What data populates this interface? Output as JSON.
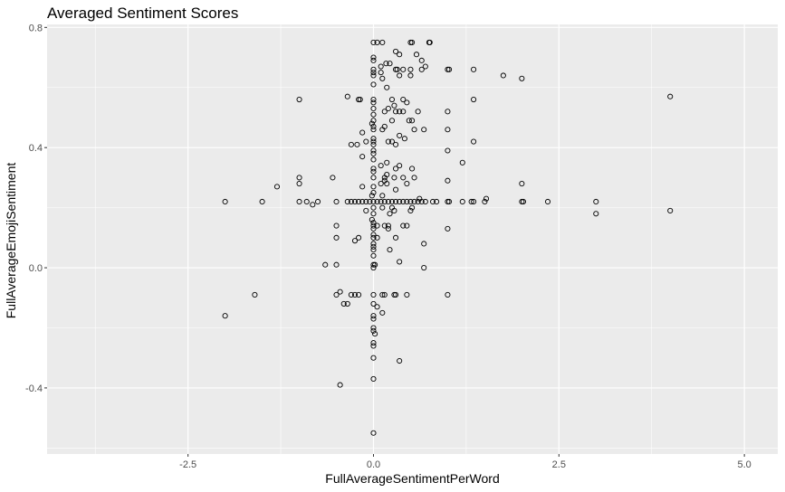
{
  "chart_data": {
    "type": "scatter",
    "title": "Averaged Sentiment Scores",
    "xlabel": "FullAverageSentimentPerWord",
    "ylabel": "FullAverageEmojiSentiment",
    "xlim": [
      -4.4,
      5.45
    ],
    "ylim": [
      -0.62,
      0.81
    ],
    "xticks": [
      -2.5,
      0.0,
      2.5,
      5.0
    ],
    "xtick_labels": [
      "-2.5",
      "0.0",
      "2.5",
      "5.0"
    ],
    "yticks": [
      -0.4,
      0.0,
      0.4,
      0.8
    ],
    "ytick_labels": [
      "-0.4",
      "0.0",
      "0.4",
      "0.8"
    ],
    "grid": true,
    "panel_background": "#ebebeb",
    "grid_color": "#ffffff",
    "point_color": "#000000",
    "marker": "open-circle",
    "points": [
      [
        0.0,
        0.75
      ],
      [
        0.05,
        0.75
      ],
      [
        0.12,
        0.75
      ],
      [
        0.5,
        0.75
      ],
      [
        0.52,
        0.75
      ],
      [
        0.75,
        0.75
      ],
      [
        0.76,
        0.75
      ],
      [
        0.3,
        0.72
      ],
      [
        0.35,
        0.71
      ],
      [
        0.58,
        0.71
      ],
      [
        0.0,
        0.7
      ],
      [
        0.0,
        0.69
      ],
      [
        0.17,
        0.68
      ],
      [
        0.1,
        0.67
      ],
      [
        0.22,
        0.68
      ],
      [
        0.65,
        0.69
      ],
      [
        0.7,
        0.67
      ],
      [
        1.0,
        0.66
      ],
      [
        1.35,
        0.66
      ],
      [
        0.0,
        0.66
      ],
      [
        0.1,
        0.65
      ],
      [
        0.3,
        0.66
      ],
      [
        0.32,
        0.66
      ],
      [
        0.4,
        0.66
      ],
      [
        0.5,
        0.66
      ],
      [
        0.65,
        0.66
      ],
      [
        1.02,
        0.66
      ],
      [
        0.0,
        0.65
      ],
      [
        0.0,
        0.64
      ],
      [
        0.12,
        0.63
      ],
      [
        0.35,
        0.64
      ],
      [
        0.5,
        0.64
      ],
      [
        1.75,
        0.64
      ],
      [
        2.0,
        0.63
      ],
      [
        0.0,
        0.61
      ],
      [
        0.18,
        0.6
      ],
      [
        -1.0,
        0.56
      ],
      [
        -0.35,
        0.57
      ],
      [
        -0.2,
        0.56
      ],
      [
        -0.18,
        0.56
      ],
      [
        0.0,
        0.56
      ],
      [
        0.0,
        0.55
      ],
      [
        0.25,
        0.56
      ],
      [
        0.4,
        0.56
      ],
      [
        0.45,
        0.55
      ],
      [
        1.35,
        0.56
      ],
      [
        4.0,
        0.57
      ],
      [
        0.0,
        0.53
      ],
      [
        0.2,
        0.53
      ],
      [
        0.28,
        0.54
      ],
      [
        0.15,
        0.52
      ],
      [
        0.3,
        0.52
      ],
      [
        0.35,
        0.52
      ],
      [
        0.4,
        0.52
      ],
      [
        0.6,
        0.52
      ],
      [
        1.0,
        0.52
      ],
      [
        0.0,
        0.51
      ],
      [
        0.0,
        0.49
      ],
      [
        0.25,
        0.49
      ],
      [
        0.48,
        0.49
      ],
      [
        0.52,
        0.49
      ],
      [
        -0.02,
        0.48
      ],
      [
        0.0,
        0.47
      ],
      [
        0.15,
        0.47
      ],
      [
        0.12,
        0.46
      ],
      [
        0.0,
        0.46
      ],
      [
        0.55,
        0.46
      ],
      [
        0.68,
        0.46
      ],
      [
        1.0,
        0.46
      ],
      [
        -0.15,
        0.45
      ],
      [
        0.35,
        0.44
      ],
      [
        0.0,
        0.43
      ],
      [
        0.42,
        0.43
      ],
      [
        -0.1,
        0.42
      ],
      [
        0.0,
        0.42
      ],
      [
        0.0,
        0.41
      ],
      [
        0.2,
        0.42
      ],
      [
        0.25,
        0.42
      ],
      [
        0.3,
        0.41
      ],
      [
        -0.3,
        0.41
      ],
      [
        -0.22,
        0.41
      ],
      [
        1.35,
        0.42
      ],
      [
        0.0,
        0.39
      ],
      [
        0.0,
        0.38
      ],
      [
        -0.15,
        0.37
      ],
      [
        1.0,
        0.39
      ],
      [
        0.0,
        0.36
      ],
      [
        0.18,
        0.35
      ],
      [
        0.1,
        0.34
      ],
      [
        0.35,
        0.34
      ],
      [
        0.0,
        0.33
      ],
      [
        0.3,
        0.33
      ],
      [
        0.52,
        0.33
      ],
      [
        1.2,
        0.35
      ],
      [
        0.0,
        0.32
      ],
      [
        0.18,
        0.31
      ],
      [
        0.28,
        0.3
      ],
      [
        -1.0,
        0.3
      ],
      [
        -0.55,
        0.3
      ],
      [
        0.0,
        0.3
      ],
      [
        0.15,
        0.3
      ],
      [
        0.4,
        0.3
      ],
      [
        0.55,
        0.3
      ],
      [
        0.15,
        0.29
      ],
      [
        1.0,
        0.29
      ],
      [
        -1.0,
        0.28
      ],
      [
        0.1,
        0.28
      ],
      [
        0.18,
        0.28
      ],
      [
        0.45,
        0.28
      ],
      [
        2.0,
        0.28
      ],
      [
        -1.3,
        0.27
      ],
      [
        -0.15,
        0.27
      ],
      [
        0.0,
        0.27
      ],
      [
        0.3,
        0.26
      ],
      [
        0.0,
        0.25
      ],
      [
        -0.02,
        0.24
      ],
      [
        0.12,
        0.24
      ],
      [
        0.62,
        0.23
      ],
      [
        0.6,
        0.22
      ],
      [
        1.52,
        0.23
      ],
      [
        -2.0,
        0.22
      ],
      [
        -1.5,
        0.22
      ],
      [
        -1.0,
        0.22
      ],
      [
        -0.9,
        0.22
      ],
      [
        -0.75,
        0.22
      ],
      [
        -0.5,
        0.22
      ],
      [
        -0.35,
        0.22
      ],
      [
        -0.3,
        0.22
      ],
      [
        -0.25,
        0.22
      ],
      [
        -0.2,
        0.22
      ],
      [
        -0.15,
        0.22
      ],
      [
        -0.1,
        0.22
      ],
      [
        -0.05,
        0.22
      ],
      [
        0.0,
        0.22
      ],
      [
        0.05,
        0.22
      ],
      [
        0.1,
        0.22
      ],
      [
        0.15,
        0.22
      ],
      [
        0.2,
        0.22
      ],
      [
        0.25,
        0.22
      ],
      [
        0.3,
        0.22
      ],
      [
        0.35,
        0.22
      ],
      [
        0.4,
        0.22
      ],
      [
        0.45,
        0.22
      ],
      [
        0.5,
        0.22
      ],
      [
        0.55,
        0.22
      ],
      [
        0.65,
        0.22
      ],
      [
        0.7,
        0.22
      ],
      [
        0.8,
        0.22
      ],
      [
        0.85,
        0.22
      ],
      [
        1.0,
        0.22
      ],
      [
        1.02,
        0.22
      ],
      [
        1.2,
        0.22
      ],
      [
        1.32,
        0.22
      ],
      [
        1.35,
        0.22
      ],
      [
        1.5,
        0.22
      ],
      [
        2.0,
        0.22
      ],
      [
        2.02,
        0.22
      ],
      [
        2.35,
        0.22
      ],
      [
        3.0,
        0.22
      ],
      [
        -0.82,
        0.21
      ],
      [
        -0.1,
        0.19
      ],
      [
        0.0,
        0.2
      ],
      [
        0.12,
        0.2
      ],
      [
        0.25,
        0.2
      ],
      [
        0.28,
        0.19
      ],
      [
        0.52,
        0.2
      ],
      [
        0.5,
        0.19
      ],
      [
        3.0,
        0.18
      ],
      [
        4.0,
        0.19
      ],
      [
        0.0,
        0.18
      ],
      [
        0.22,
        0.18
      ],
      [
        -0.02,
        0.16
      ],
      [
        0.0,
        0.15
      ],
      [
        0.0,
        0.14
      ],
      [
        -0.5,
        0.14
      ],
      [
        0.0,
        0.13
      ],
      [
        0.05,
        0.14
      ],
      [
        0.15,
        0.14
      ],
      [
        0.2,
        0.14
      ],
      [
        0.4,
        0.14
      ],
      [
        0.45,
        0.14
      ],
      [
        0.2,
        0.13
      ],
      [
        1.0,
        0.13
      ],
      [
        0.0,
        0.11
      ],
      [
        0.0,
        0.1
      ],
      [
        -0.5,
        0.1
      ],
      [
        -0.2,
        0.1
      ],
      [
        0.05,
        0.1
      ],
      [
        0.3,
        0.1
      ],
      [
        -0.25,
        0.09
      ],
      [
        0.0,
        0.08
      ],
      [
        0.68,
        0.08
      ],
      [
        0.0,
        0.07
      ],
      [
        0.0,
        0.06
      ],
      [
        0.22,
        0.06
      ],
      [
        0.0,
        0.04
      ],
      [
        0.35,
        0.02
      ],
      [
        0.0,
        0.01
      ],
      [
        0.02,
        0.01
      ],
      [
        -0.65,
        0.01
      ],
      [
        -0.5,
        0.01
      ],
      [
        0.0,
        0.0
      ],
      [
        0.68,
        0.0
      ],
      [
        -1.6,
        -0.09
      ],
      [
        -0.45,
        -0.08
      ],
      [
        -0.5,
        -0.09
      ],
      [
        -0.3,
        -0.09
      ],
      [
        -0.25,
        -0.09
      ],
      [
        -0.2,
        -0.09
      ],
      [
        0.0,
        -0.09
      ],
      [
        0.12,
        -0.09
      ],
      [
        0.15,
        -0.09
      ],
      [
        0.28,
        -0.09
      ],
      [
        0.3,
        -0.09
      ],
      [
        0.45,
        -0.09
      ],
      [
        1.0,
        -0.09
      ],
      [
        -0.4,
        -0.12
      ],
      [
        -0.35,
        -0.12
      ],
      [
        0.0,
        -0.12
      ],
      [
        0.05,
        -0.13
      ],
      [
        0.12,
        -0.15
      ],
      [
        -2.0,
        -0.16
      ],
      [
        0.0,
        -0.16
      ],
      [
        0.0,
        -0.17
      ],
      [
        0.0,
        -0.2
      ],
      [
        0.0,
        -0.21
      ],
      [
        0.02,
        -0.22
      ],
      [
        0.0,
        -0.25
      ],
      [
        0.0,
        -0.26
      ],
      [
        0.0,
        -0.3
      ],
      [
        0.35,
        -0.31
      ],
      [
        0.0,
        -0.37
      ],
      [
        -0.45,
        -0.39
      ],
      [
        0.0,
        -0.55
      ]
    ]
  }
}
